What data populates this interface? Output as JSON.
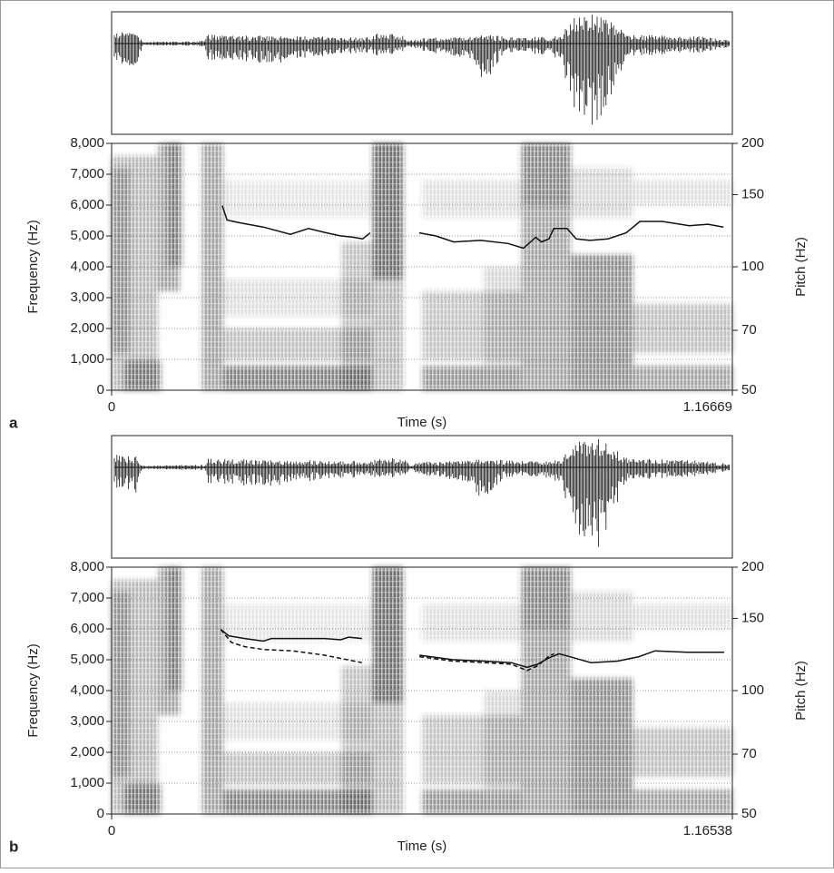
{
  "chart_data": [
    {
      "type": "line",
      "label": "a",
      "x_label": "Time (s)",
      "y_label": "Frequency (Hz)",
      "y2_label": "Pitch (Hz)",
      "xlim": [
        0,
        1.16669
      ],
      "xticks": [
        0,
        1.16669
      ],
      "ylim": [
        0,
        8000
      ],
      "yticks": [
        0,
        {
          "value": 1000,
          "label": "1,000"
        },
        {
          "value": 2000,
          "label": "2,000"
        },
        {
          "value": 3000,
          "label": "3,000"
        },
        {
          "value": 4000,
          "label": "4,000"
        },
        {
          "value": 5000,
          "label": "5,000"
        },
        {
          "value": 6000,
          "label": "6,000"
        },
        {
          "value": 7000,
          "label": "7,000"
        },
        {
          "value": 8000,
          "label": "8,000"
        }
      ],
      "y2lim": [
        50,
        200
      ],
      "y2ticks": [
        50,
        70,
        100,
        150,
        200
      ],
      "y2scale": "log",
      "grid": true,
      "series": [
        {
          "color": "#111111",
          "style": "solid",
          "axis": "y2",
          "x": [
            0.208,
            0.217,
            0.242,
            0.285,
            0.336,
            0.37,
            0.404,
            0.43,
            0.455,
            0.472,
            0.486,
            0.53,
            0.578,
            0.609,
            0.643,
            0.694,
            0.745,
            0.774,
            0.797,
            0.808,
            0.822,
            0.831,
            0.856,
            0.873,
            0.899,
            0.933,
            0.967,
            0.993,
            1.035,
            1.086,
            1.121,
            1.15
          ],
          "values": [
            141,
            130,
            128,
            125,
            120,
            124,
            121,
            119,
            118,
            117,
            121,
            null,
            121,
            119,
            115,
            116,
            114,
            111,
            118,
            115,
            117,
            124,
            124,
            117,
            116,
            117,
            121,
            129,
            129,
            126,
            127,
            125
          ]
        }
      ]
    },
    {
      "type": "line",
      "label": "b",
      "x_label": "Time (s)",
      "y_label": "Frequency (Hz)",
      "y2_label": "Pitch (Hz)",
      "xlim": [
        0,
        1.16538
      ],
      "xticks": [
        0,
        1.16538
      ],
      "ylim": [
        0,
        8000
      ],
      "yticks": [
        0,
        {
          "value": 1000,
          "label": "1,000"
        },
        {
          "value": 2000,
          "label": "2,000"
        },
        {
          "value": 3000,
          "label": "3,000"
        },
        {
          "value": 4000,
          "label": "4,000"
        },
        {
          "value": 5000,
          "label": "5,000"
        },
        {
          "value": 6000,
          "label": "6,000"
        },
        {
          "value": 7000,
          "label": "7,000"
        },
        {
          "value": 8000,
          "label": "8,000"
        }
      ],
      "y2lim": [
        50,
        200
      ],
      "y2ticks": [
        50,
        70,
        100,
        150,
        200
      ],
      "y2scale": "log",
      "grid": true,
      "series": [
        {
          "color": "#111111",
          "style": "solid",
          "axis": "y2",
          "x": [
            0.205,
            0.22,
            0.25,
            0.285,
            0.3,
            0.34,
            0.4,
            0.43,
            0.445,
            0.47,
            0.53,
            0.578,
            0.64,
            0.7,
            0.75,
            0.78,
            0.8,
            0.82,
            0.84,
            0.87,
            0.9,
            0.95,
            0.99,
            1.02,
            1.08,
            1.15
          ],
          "values": [
            141,
            136,
            134,
            132,
            134,
            134,
            134,
            133,
            135,
            134,
            null,
            122,
            119,
            118,
            117,
            114,
            116,
            120,
            123,
            120,
            117,
            118,
            121,
            125,
            124,
            124
          ]
        },
        {
          "color": "#111111",
          "style": "dashed",
          "axis": "y2",
          "x": [
            0.205,
            0.225,
            0.25,
            0.285,
            0.34,
            0.4,
            0.47,
            0.53,
            0.578,
            0.64,
            0.7,
            0.75,
            0.78,
            0.8,
            0.82,
            0.83
          ],
          "values": [
            141,
            131,
            128,
            126,
            125,
            122,
            117,
            null,
            121,
            118,
            117,
            116,
            112,
            115,
            121,
            123
          ]
        }
      ]
    }
  ]
}
